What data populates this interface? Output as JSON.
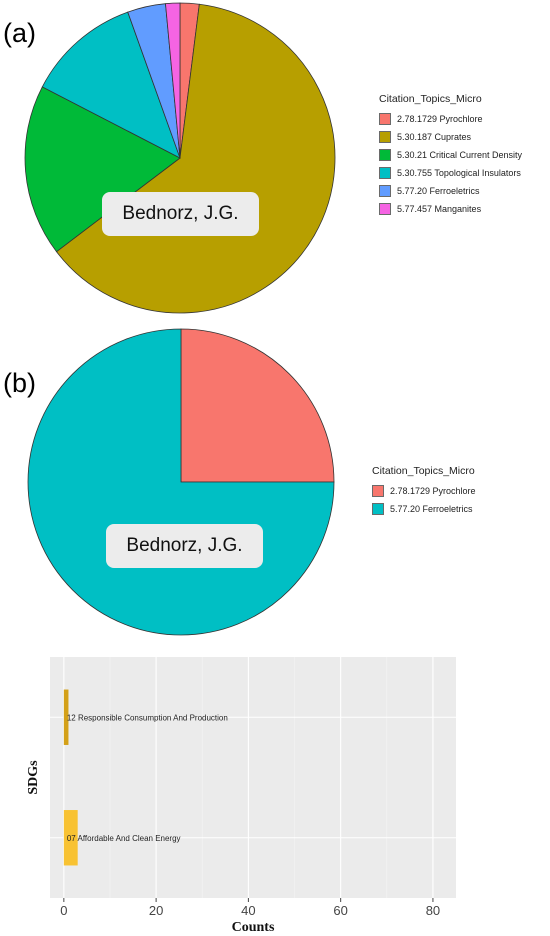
{
  "panel_a": {
    "tag": "(a)",
    "center_label": "Bednorz, J.G."
  },
  "panel_b": {
    "tag": "(b)",
    "center_label": "Bednorz, J.G."
  },
  "chart_data": [
    {
      "type": "pie",
      "legend_title": "Citation_Topics_Micro",
      "legend_position": "right",
      "slices": [
        {
          "label": "2.78.1729 Pyrochlore",
          "value": 2,
          "color": "#F8766D"
        },
        {
          "label": "5.30.187 Cuprates",
          "value": 63,
          "color": "#B79F00"
        },
        {
          "label": "5.30.21 Critical Current Density",
          "value": 18,
          "color": "#00BA38"
        },
        {
          "label": "5.30.755 Topological Insulators",
          "value": 12,
          "color": "#00BFC4"
        },
        {
          "label": "5.77.20 Ferroeletrics",
          "value": 4,
          "color": "#619CFF"
        },
        {
          "label": "5.77.457 Manganites",
          "value": 1.5,
          "color": "#F564E3"
        }
      ]
    },
    {
      "type": "pie",
      "legend_title": "Citation_Topics_Micro",
      "legend_position": "right",
      "slices": [
        {
          "label": "2.78.1729 Pyrochlore",
          "value": 1,
          "color": "#F8766D"
        },
        {
          "label": "5.77.20 Ferroeletrics",
          "value": 3,
          "color": "#00BFC4"
        }
      ]
    },
    {
      "type": "bar",
      "orientation": "horizontal",
      "xlabel": "Counts",
      "ylabel": "SDGs",
      "xlim": [
        -3,
        85
      ],
      "ticks": [
        0,
        20,
        40,
        60,
        80
      ],
      "grid": true,
      "categories": [
        "12 Responsible Consumption And Production",
        "07 Affordable And Clean Energy"
      ],
      "values": [
        1,
        3
      ],
      "colors": [
        "#D4A017",
        "#F8C232"
      ]
    }
  ]
}
